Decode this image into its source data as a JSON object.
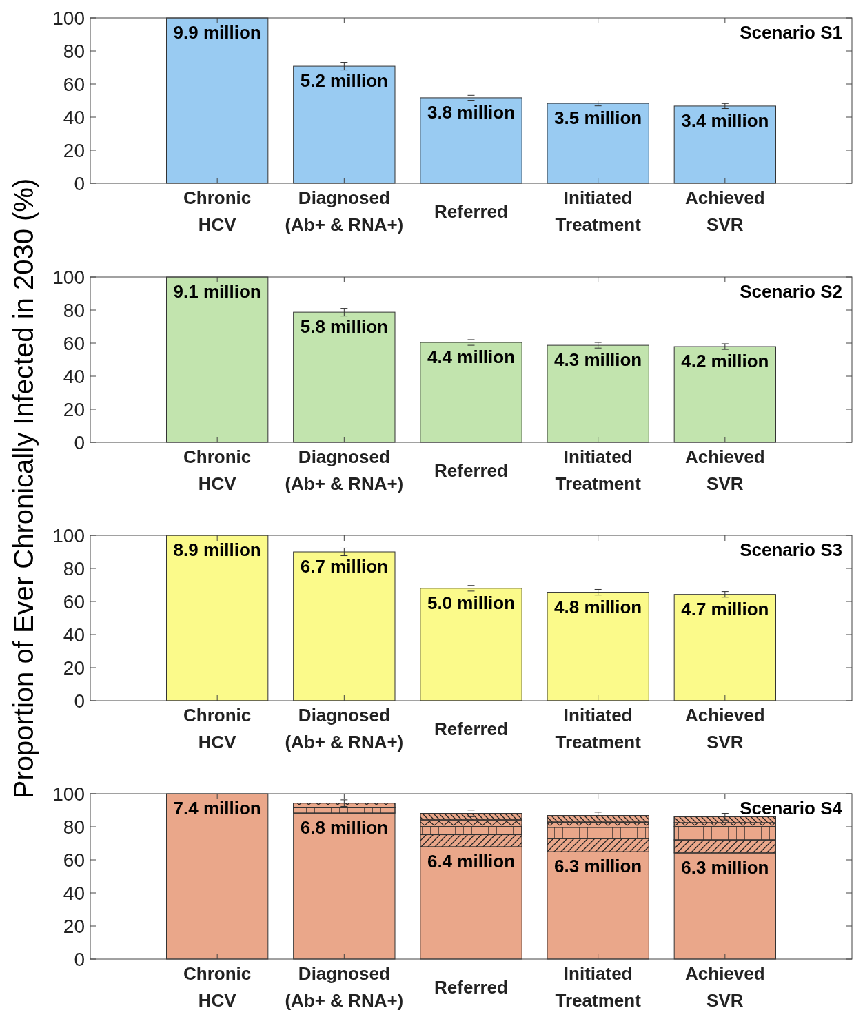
{
  "chart_data": [
    {
      "type": "bar",
      "title": "Scenario S1",
      "ylabel": "Proportion of Ever Chronically Infected in 2030 (%)",
      "categories": [
        "Chronic\nHCV",
        "Diagnosed\n(Ab+ & RNA+)",
        "Referred",
        "Initiated\nTreatment",
        "Achieved\nSVR"
      ],
      "values": [
        100,
        70.8,
        51.7,
        48.3,
        46.7
      ],
      "errors": [
        null,
        2.3,
        1.5,
        1.5,
        1.5
      ],
      "color": "#99cbf2",
      "ylim": [
        0,
        100
      ],
      "yticks": [
        0,
        20,
        40,
        60,
        80,
        100
      ],
      "grid": false,
      "annotations": [
        {
          "text": "9.9 million",
          "x": "Chronic\nHCV",
          "y": 100
        },
        {
          "text": "5.2 million",
          "x": "Diagnosed\n(Ab+ & RNA+)",
          "y": 70.8
        },
        {
          "text": "3.8 million",
          "x": "Referred",
          "y": 51.7
        },
        {
          "text": "3.5 million",
          "x": "Initiated\nTreatment",
          "y": 48.3
        },
        {
          "text": "3.4 million",
          "x": "Achieved\nSVR",
          "y": 46.7
        }
      ]
    },
    {
      "type": "bar",
      "title": "Scenario S2",
      "categories": [
        "Chronic\nHCV",
        "Diagnosed\n(Ab+ & RNA+)",
        "Referred",
        "Initiated\nTreatment",
        "Achieved\nSVR"
      ],
      "values": [
        100,
        78.7,
        60.4,
        58.7,
        57.9
      ],
      "errors": [
        null,
        2.3,
        1.7,
        1.7,
        1.7
      ],
      "color": "#c2e4ae",
      "ylim": [
        0,
        100
      ],
      "yticks": [
        0,
        20,
        40,
        60,
        80,
        100
      ],
      "grid": false,
      "annotations": [
        {
          "text": "9.1 million",
          "x": "Chronic\nHCV",
          "y": 100
        },
        {
          "text": "5.8 million",
          "x": "Diagnosed\n(Ab+ & RNA+)",
          "y": 78.7
        },
        {
          "text": "4.4 million",
          "x": "Referred",
          "y": 60.4
        },
        {
          "text": "4.3 million",
          "x": "Initiated\nTreatment",
          "y": 58.7
        },
        {
          "text": "4.2 million",
          "x": "Achieved\nSVR",
          "y": 57.9
        }
      ]
    },
    {
      "type": "bar",
      "title": "Scenario S3",
      "categories": [
        "Chronic\nHCV",
        "Diagnosed\n(Ab+ & RNA+)",
        "Referred",
        "Initiated\nTreatment",
        "Achieved\nSVR"
      ],
      "values": [
        100,
        90,
        68,
        65.6,
        64.3
      ],
      "errors": [
        null,
        2.3,
        1.7,
        1.7,
        1.7
      ],
      "color": "#fbfa8a",
      "ylim": [
        0,
        100
      ],
      "yticks": [
        0,
        20,
        40,
        60,
        80,
        100
      ],
      "grid": false,
      "annotations": [
        {
          "text": "8.9 million",
          "x": "Chronic\nHCV",
          "y": 100
        },
        {
          "text": "6.7 million",
          "x": "Diagnosed\n(Ab+ & RNA+)",
          "y": 90
        },
        {
          "text": "5.0 million",
          "x": "Referred",
          "y": 68
        },
        {
          "text": "4.8 million",
          "x": "Initiated\nTreatment",
          "y": 65.6
        },
        {
          "text": "4.7 million",
          "x": "Achieved\nSVR",
          "y": 64.3
        }
      ]
    },
    {
      "type": "bar",
      "title": "Scenario S4",
      "stacked": true,
      "categories": [
        "Chronic\nHCV",
        "Diagnosed\n(Ab+ & RNA+)",
        "Referred",
        "Initiated\nTreatment",
        "Achieved\nSVR"
      ],
      "series": [
        {
          "color": "#eaa78a",
          "values": [
            100,
            88.3,
            67.9,
            64.9,
            64.2
          ]
        },
        {
          "color": "#eaa78a",
          "values": [
            0,
            0,
            7.3,
            8.0,
            7.9
          ]
        },
        {
          "color": "#eaa78a",
          "values": [
            0,
            3.2,
            4.9,
            6.8,
            8.0
          ]
        },
        {
          "color": "#eaa78a",
          "values": [
            0,
            2.8,
            4.1,
            3.2,
            2.4
          ]
        },
        {
          "color": "#eaa78a",
          "values": [
            0,
            0,
            3.9,
            3.9,
            3.6
          ],
          "errors": [
            null,
            2,
            2,
            2,
            2
          ]
        }
      ],
      "ylim": [
        0,
        100
      ],
      "yticks": [
        0,
        20,
        40,
        60,
        80,
        100
      ],
      "grid": false,
      "annotations": [
        {
          "text": "7.4 million",
          "x": "Chronic\nHCV",
          "y": 100
        },
        {
          "text": "6.8 million",
          "x": "Diagnosed\n(Ab+ & RNA+)",
          "y": 88.3
        },
        {
          "text": "6.4 million",
          "x": "Referred",
          "y": 67.9
        },
        {
          "text": "6.3 million",
          "x": "Initiated\nTreatment",
          "y": 64.9
        },
        {
          "text": "6.3 million",
          "x": "Achieved\nSVR",
          "y": 64.2
        }
      ]
    }
  ]
}
